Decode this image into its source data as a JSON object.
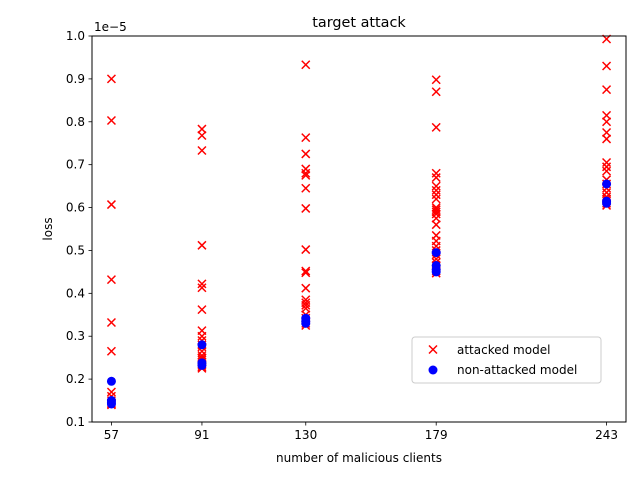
{
  "chart_data": {
    "type": "scatter",
    "title": "target attack",
    "xlabel": "number of malicious clients",
    "ylabel": "loss",
    "y_offset_label": "1e−5",
    "x_ticks": [
      "57",
      "91",
      "130",
      "179",
      "243"
    ],
    "y_ticks": [
      "0.1",
      "0.2",
      "0.3",
      "0.4",
      "0.5",
      "0.6",
      "0.7",
      "0.8",
      "0.9",
      "1.0"
    ],
    "xlim": [
      49.7,
      250.3
    ],
    "ylim": [
      0.1,
      1.0
    ],
    "grid": false,
    "legend_position": "lower right",
    "series": [
      {
        "name": "attacked model",
        "marker": "x",
        "color": "#ff0000",
        "points": [
          [
            57,
            0.9
          ],
          [
            57,
            0.803
          ],
          [
            57,
            0.607
          ],
          [
            57,
            0.432
          ],
          [
            57,
            0.332
          ],
          [
            57,
            0.265
          ],
          [
            57,
            0.17
          ],
          [
            57,
            0.16
          ],
          [
            57,
            0.15
          ],
          [
            57,
            0.145
          ],
          [
            57,
            0.142
          ],
          [
            57,
            0.14
          ],
          [
            91,
            0.783
          ],
          [
            91,
            0.768
          ],
          [
            91,
            0.733
          ],
          [
            91,
            0.512
          ],
          [
            91,
            0.422
          ],
          [
            91,
            0.413
          ],
          [
            91,
            0.362
          ],
          [
            91,
            0.313
          ],
          [
            91,
            0.3
          ],
          [
            91,
            0.29
          ],
          [
            91,
            0.28
          ],
          [
            91,
            0.275
          ],
          [
            91,
            0.265
          ],
          [
            91,
            0.255
          ],
          [
            91,
            0.25
          ],
          [
            91,
            0.245
          ],
          [
            91,
            0.24
          ],
          [
            91,
            0.235
          ],
          [
            91,
            0.232
          ],
          [
            91,
            0.228
          ],
          [
            91,
            0.225
          ],
          [
            130,
            0.933
          ],
          [
            130,
            0.763
          ],
          [
            130,
            0.725
          ],
          [
            130,
            0.69
          ],
          [
            130,
            0.68
          ],
          [
            130,
            0.675
          ],
          [
            130,
            0.645
          ],
          [
            130,
            0.598
          ],
          [
            130,
            0.502
          ],
          [
            130,
            0.452
          ],
          [
            130,
            0.448
          ],
          [
            130,
            0.412
          ],
          [
            130,
            0.385
          ],
          [
            130,
            0.378
          ],
          [
            130,
            0.372
          ],
          [
            130,
            0.365
          ],
          [
            130,
            0.35
          ],
          [
            130,
            0.342
          ],
          [
            130,
            0.336
          ],
          [
            130,
            0.33
          ],
          [
            130,
            0.325
          ],
          [
            179,
            0.898
          ],
          [
            179,
            0.87
          ],
          [
            179,
            0.787
          ],
          [
            179,
            0.68
          ],
          [
            179,
            0.67
          ],
          [
            179,
            0.65
          ],
          [
            179,
            0.64
          ],
          [
            179,
            0.63
          ],
          [
            179,
            0.62
          ],
          [
            179,
            0.6
          ],
          [
            179,
            0.595
          ],
          [
            179,
            0.59
          ],
          [
            179,
            0.585
          ],
          [
            179,
            0.575
          ],
          [
            179,
            0.56
          ],
          [
            179,
            0.535
          ],
          [
            179,
            0.522
          ],
          [
            179,
            0.51
          ],
          [
            179,
            0.5
          ],
          [
            179,
            0.49
          ],
          [
            179,
            0.48
          ],
          [
            179,
            0.472
          ],
          [
            179,
            0.465
          ],
          [
            179,
            0.458
          ],
          [
            179,
            0.452
          ],
          [
            179,
            0.447
          ],
          [
            243,
            0.993
          ],
          [
            243,
            0.93
          ],
          [
            243,
            0.875
          ],
          [
            243,
            0.815
          ],
          [
            243,
            0.8
          ],
          [
            243,
            0.775
          ],
          [
            243,
            0.76
          ],
          [
            243,
            0.705
          ],
          [
            243,
            0.695
          ],
          [
            243,
            0.685
          ],
          [
            243,
            0.665
          ],
          [
            243,
            0.655
          ],
          [
            243,
            0.645
          ],
          [
            243,
            0.635
          ],
          [
            243,
            0.625
          ],
          [
            243,
            0.62
          ],
          [
            243,
            0.615
          ],
          [
            243,
            0.61
          ],
          [
            243,
            0.605
          ]
        ]
      },
      {
        "name": "non-attacked model",
        "marker": "o",
        "color": "#0000ff",
        "points": [
          [
            57,
            0.195
          ],
          [
            57,
            0.15
          ],
          [
            57,
            0.145
          ],
          [
            57,
            0.142
          ],
          [
            91,
            0.28
          ],
          [
            91,
            0.238
          ],
          [
            91,
            0.232
          ],
          [
            130,
            0.342
          ],
          [
            130,
            0.335
          ],
          [
            130,
            0.33
          ],
          [
            179,
            0.495
          ],
          [
            179,
            0.465
          ],
          [
            179,
            0.455
          ],
          [
            179,
            0.45
          ],
          [
            243,
            0.655
          ],
          [
            243,
            0.615
          ],
          [
            243,
            0.61
          ]
        ]
      }
    ]
  }
}
